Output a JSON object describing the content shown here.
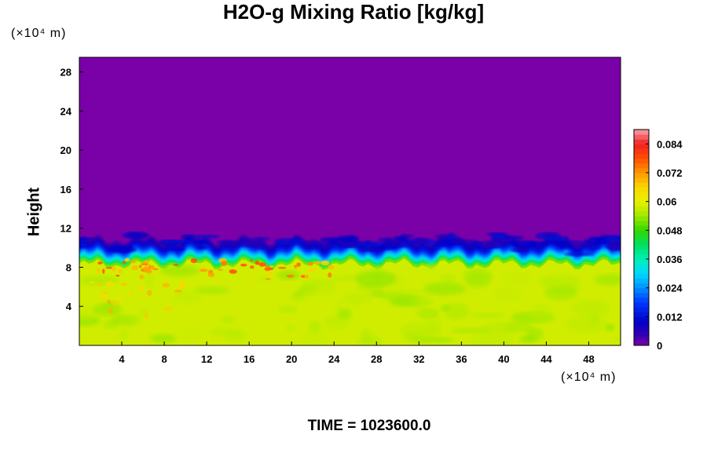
{
  "chart_data": {
    "type": "heatmap",
    "title": "H2O-g Mixing Ratio [kg/kg]",
    "ylabel": "Height",
    "xlabel": "",
    "x_unit": "(×10⁴ m)",
    "y_unit": "(×10⁴ m)",
    "xlim": [
      0,
      51
    ],
    "ylim": [
      0,
      29.5
    ],
    "x_ticks": [
      "4",
      "8",
      "12",
      "16",
      "20",
      "24",
      "28",
      "32",
      "36",
      "40",
      "44",
      "48"
    ],
    "y_ticks": [
      "4",
      "8",
      "12",
      "16",
      "20",
      "24",
      "28"
    ],
    "colorbar": {
      "min": 0,
      "max": 0.09,
      "ticks": [
        "0",
        "0.012",
        "0.024",
        "0.036",
        "0.048",
        "0.06",
        "0.072",
        "0.084"
      ]
    },
    "field_summary": [
      {
        "region": "upper layer (height ~10.5 to 29.5)",
        "value": 0
      },
      {
        "region": "transition band (height ~8.5 to 10.5)",
        "value_range": [
          0.006,
          0.045
        ]
      },
      {
        "region": "lower layer (height 0 to ~8.5)",
        "value": 0.058
      },
      {
        "region": "localized maxima near height ~7-9 and x ~2-24",
        "value": 0.075
      }
    ],
    "grid": false
  },
  "footer": {
    "time_text": "TIME = 1023600.0"
  }
}
